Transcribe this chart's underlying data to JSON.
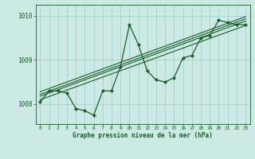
{
  "title": "Graphe pression niveau de la mer (hPa)",
  "bg_color": "#cce9e4",
  "line_color": "#1a5c2a",
  "grid_color": "#99cccc",
  "ylim": [
    1007.55,
    1010.25
  ],
  "xlim": [
    -0.5,
    23.5
  ],
  "yticks": [
    1008,
    1009,
    1010
  ],
  "xticks": [
    0,
    1,
    2,
    3,
    4,
    5,
    6,
    7,
    8,
    9,
    10,
    11,
    12,
    13,
    14,
    15,
    16,
    17,
    18,
    19,
    20,
    21,
    22,
    23
  ],
  "data_x": [
    0,
    1,
    2,
    3,
    4,
    5,
    6,
    7,
    8,
    9,
    10,
    11,
    12,
    13,
    14,
    15,
    16,
    17,
    18,
    19,
    20,
    21,
    22,
    23
  ],
  "data_y": [
    1008.05,
    1008.3,
    1008.3,
    1008.25,
    1007.9,
    1007.85,
    1007.75,
    1008.3,
    1008.3,
    1008.85,
    1009.8,
    1009.35,
    1008.75,
    1008.55,
    1008.5,
    1008.6,
    1009.05,
    1009.1,
    1009.5,
    1009.55,
    1009.9,
    1009.85,
    1009.8,
    1009.8
  ],
  "trend1_x": [
    0,
    23
  ],
  "trend1_y": [
    1008.1,
    1009.78
  ],
  "trend2_x": [
    0,
    23
  ],
  "trend2_y": [
    1008.18,
    1009.88
  ],
  "trend3_x": [
    0,
    23
  ],
  "trend3_y": [
    1008.22,
    1009.93
  ],
  "trend4_x": [
    0,
    23
  ],
  "trend4_y": [
    1008.28,
    1009.98
  ],
  "fig_width": 3.2,
  "fig_height": 2.0,
  "dpi": 100
}
